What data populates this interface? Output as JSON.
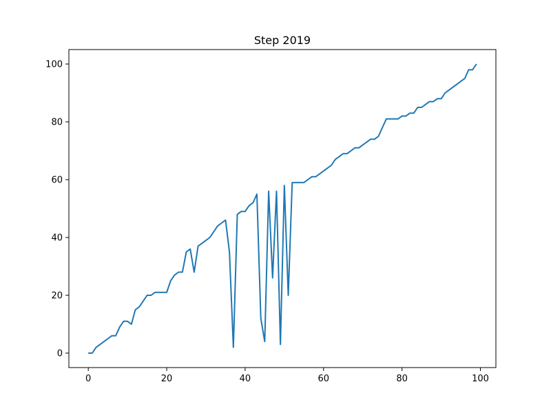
{
  "chart_data": {
    "type": "line",
    "title": "Step 2019",
    "xlabel": "",
    "ylabel": "",
    "xlim": [
      -4.95,
      103.95
    ],
    "ylim": [
      -5,
      105
    ],
    "x_ticks": [
      0,
      20,
      40,
      60,
      80,
      100
    ],
    "y_ticks": [
      0,
      20,
      40,
      60,
      80,
      100
    ],
    "grid": false,
    "line_color": "#1f77b4",
    "series": [
      {
        "x": [
          0,
          1,
          2,
          3,
          4,
          5,
          6,
          7,
          8,
          9,
          10,
          11,
          12,
          13,
          14,
          15,
          16,
          17,
          18,
          19,
          20,
          21,
          22,
          23,
          24,
          25,
          26,
          27,
          28,
          29,
          30,
          31,
          32,
          33,
          34,
          35,
          36,
          37,
          38,
          39,
          40,
          41,
          42,
          43,
          44,
          45,
          46,
          47,
          48,
          49,
          50,
          51,
          52,
          53,
          54,
          55,
          56,
          57,
          58,
          59,
          60,
          61,
          62,
          63,
          64,
          65,
          66,
          67,
          68,
          69,
          70,
          71,
          72,
          73,
          74,
          75,
          76,
          77,
          78,
          79,
          80,
          81,
          82,
          83,
          84,
          85,
          86,
          87,
          88,
          89,
          90,
          91,
          92,
          93,
          94,
          95,
          96,
          97,
          98,
          99
        ],
        "y": [
          0,
          0,
          2,
          3,
          4,
          5,
          6,
          6,
          9,
          11,
          11,
          10,
          15,
          16,
          18,
          20,
          20,
          21,
          21,
          21,
          21,
          25,
          27,
          28,
          28,
          35,
          36,
          28,
          37,
          38,
          39,
          40,
          42,
          44,
          45,
          46,
          35,
          2,
          48,
          49,
          49,
          51,
          52,
          55,
          12,
          4,
          56,
          26,
          56,
          3,
          58,
          20,
          59,
          59,
          59,
          59,
          60,
          61,
          61,
          62,
          63,
          64,
          65,
          67,
          68,
          69,
          69,
          70,
          71,
          71,
          72,
          73,
          74,
          74,
          75,
          78,
          81,
          81,
          81,
          81,
          82,
          82,
          83,
          83,
          85,
          85,
          86,
          87,
          87,
          88,
          88,
          90,
          91,
          92,
          93,
          94,
          95,
          98,
          98,
          100
        ]
      }
    ]
  }
}
